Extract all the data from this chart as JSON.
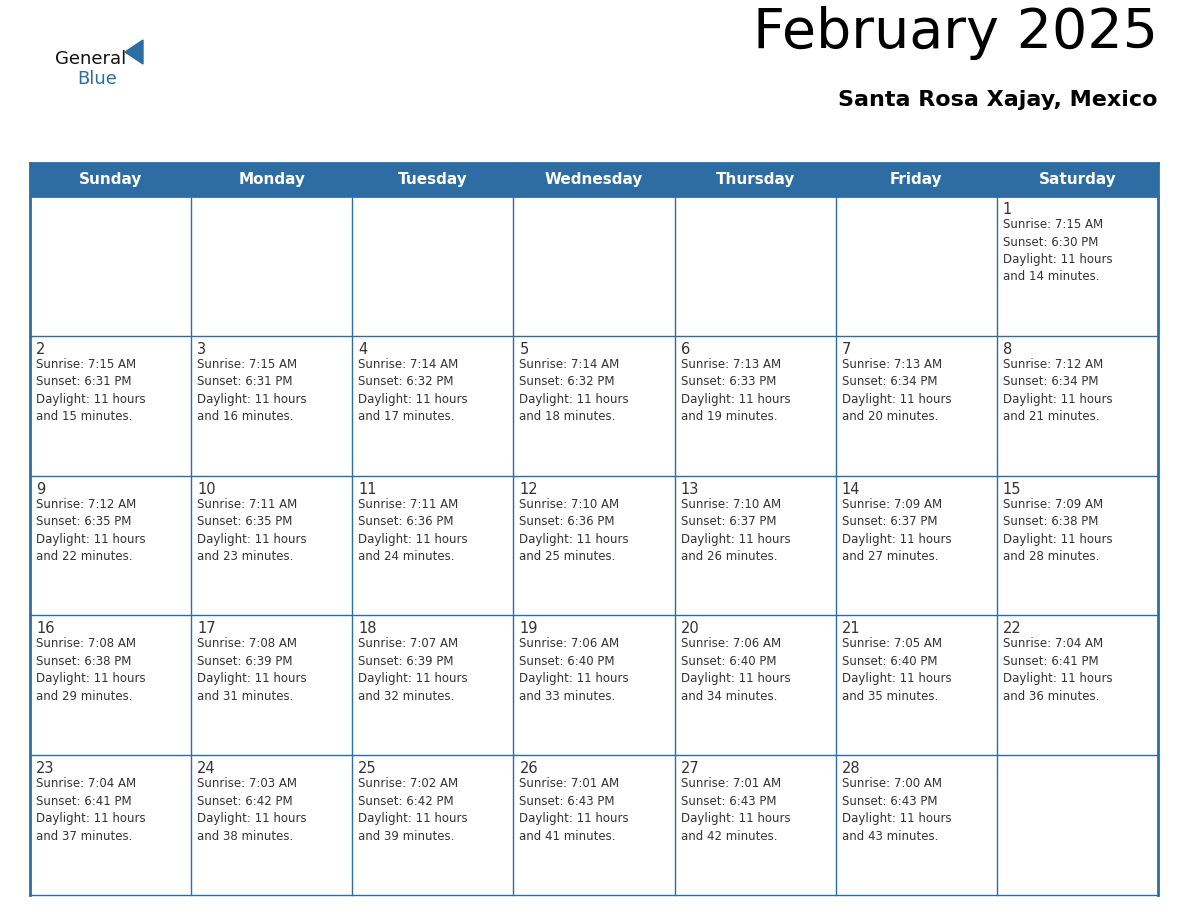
{
  "title": "February 2025",
  "subtitle": "Santa Rosa Xajay, Mexico",
  "header_bg": "#2d6da3",
  "header_text_color": "#ffffff",
  "cell_bg": "#ffffff",
  "row1_bg": "#f0f0f0",
  "border_color": "#2d6da3",
  "text_color": "#333333",
  "days_of_week": [
    "Sunday",
    "Monday",
    "Tuesday",
    "Wednesday",
    "Thursday",
    "Friday",
    "Saturday"
  ],
  "logo_general_color": "#111111",
  "logo_blue_color": "#2d6da3",
  "logo_triangle_color": "#2d6da3",
  "calendar_data": [
    [
      null,
      null,
      null,
      null,
      null,
      null,
      {
        "day": "1",
        "sunrise": "7:15 AM",
        "sunset": "6:30 PM",
        "daylight": "11 hours\nand 14 minutes."
      }
    ],
    [
      {
        "day": "2",
        "sunrise": "7:15 AM",
        "sunset": "6:31 PM",
        "daylight": "11 hours\nand 15 minutes."
      },
      {
        "day": "3",
        "sunrise": "7:15 AM",
        "sunset": "6:31 PM",
        "daylight": "11 hours\nand 16 minutes."
      },
      {
        "day": "4",
        "sunrise": "7:14 AM",
        "sunset": "6:32 PM",
        "daylight": "11 hours\nand 17 minutes."
      },
      {
        "day": "5",
        "sunrise": "7:14 AM",
        "sunset": "6:32 PM",
        "daylight": "11 hours\nand 18 minutes."
      },
      {
        "day": "6",
        "sunrise": "7:13 AM",
        "sunset": "6:33 PM",
        "daylight": "11 hours\nand 19 minutes."
      },
      {
        "day": "7",
        "sunrise": "7:13 AM",
        "sunset": "6:34 PM",
        "daylight": "11 hours\nand 20 minutes."
      },
      {
        "day": "8",
        "sunrise": "7:12 AM",
        "sunset": "6:34 PM",
        "daylight": "11 hours\nand 21 minutes."
      }
    ],
    [
      {
        "day": "9",
        "sunrise": "7:12 AM",
        "sunset": "6:35 PM",
        "daylight": "11 hours\nand 22 minutes."
      },
      {
        "day": "10",
        "sunrise": "7:11 AM",
        "sunset": "6:35 PM",
        "daylight": "11 hours\nand 23 minutes."
      },
      {
        "day": "11",
        "sunrise": "7:11 AM",
        "sunset": "6:36 PM",
        "daylight": "11 hours\nand 24 minutes."
      },
      {
        "day": "12",
        "sunrise": "7:10 AM",
        "sunset": "6:36 PM",
        "daylight": "11 hours\nand 25 minutes."
      },
      {
        "day": "13",
        "sunrise": "7:10 AM",
        "sunset": "6:37 PM",
        "daylight": "11 hours\nand 26 minutes."
      },
      {
        "day": "14",
        "sunrise": "7:09 AM",
        "sunset": "6:37 PM",
        "daylight": "11 hours\nand 27 minutes."
      },
      {
        "day": "15",
        "sunrise": "7:09 AM",
        "sunset": "6:38 PM",
        "daylight": "11 hours\nand 28 minutes."
      }
    ],
    [
      {
        "day": "16",
        "sunrise": "7:08 AM",
        "sunset": "6:38 PM",
        "daylight": "11 hours\nand 29 minutes."
      },
      {
        "day": "17",
        "sunrise": "7:08 AM",
        "sunset": "6:39 PM",
        "daylight": "11 hours\nand 31 minutes."
      },
      {
        "day": "18",
        "sunrise": "7:07 AM",
        "sunset": "6:39 PM",
        "daylight": "11 hours\nand 32 minutes."
      },
      {
        "day": "19",
        "sunrise": "7:06 AM",
        "sunset": "6:40 PM",
        "daylight": "11 hours\nand 33 minutes."
      },
      {
        "day": "20",
        "sunrise": "7:06 AM",
        "sunset": "6:40 PM",
        "daylight": "11 hours\nand 34 minutes."
      },
      {
        "day": "21",
        "sunrise": "7:05 AM",
        "sunset": "6:40 PM",
        "daylight": "11 hours\nand 35 minutes."
      },
      {
        "day": "22",
        "sunrise": "7:04 AM",
        "sunset": "6:41 PM",
        "daylight": "11 hours\nand 36 minutes."
      }
    ],
    [
      {
        "day": "23",
        "sunrise": "7:04 AM",
        "sunset": "6:41 PM",
        "daylight": "11 hours\nand 37 minutes."
      },
      {
        "day": "24",
        "sunrise": "7:03 AM",
        "sunset": "6:42 PM",
        "daylight": "11 hours\nand 38 minutes."
      },
      {
        "day": "25",
        "sunrise": "7:02 AM",
        "sunset": "6:42 PM",
        "daylight": "11 hours\nand 39 minutes."
      },
      {
        "day": "26",
        "sunrise": "7:01 AM",
        "sunset": "6:43 PM",
        "daylight": "11 hours\nand 41 minutes."
      },
      {
        "day": "27",
        "sunrise": "7:01 AM",
        "sunset": "6:43 PM",
        "daylight": "11 hours\nand 42 minutes."
      },
      {
        "day": "28",
        "sunrise": "7:00 AM",
        "sunset": "6:43 PM",
        "daylight": "11 hours\nand 43 minutes."
      },
      null
    ]
  ]
}
